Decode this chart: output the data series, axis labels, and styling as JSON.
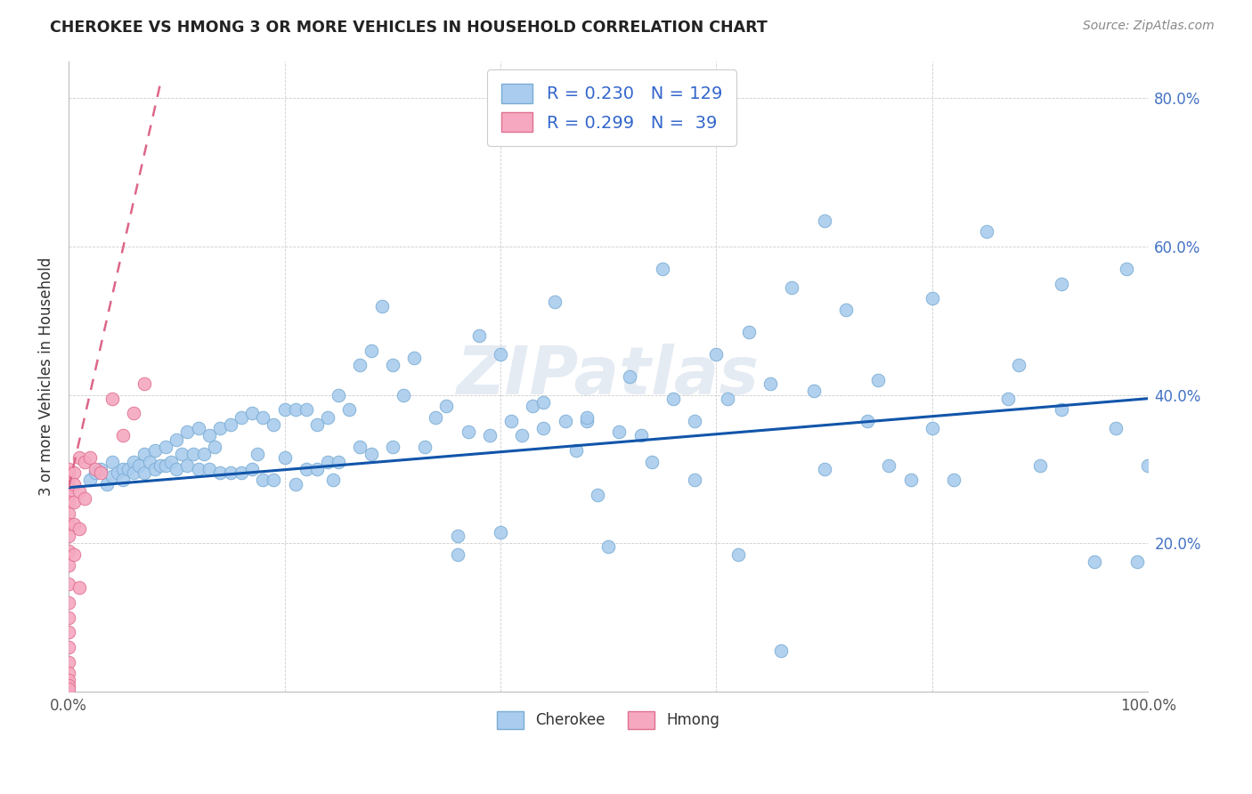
{
  "title": "CHEROKEE VS HMONG 3 OR MORE VEHICLES IN HOUSEHOLD CORRELATION CHART",
  "source": "Source: ZipAtlas.com",
  "ylabel": "3 or more Vehicles in Household",
  "xlim": [
    0.0,
    1.0
  ],
  "ylim": [
    0.0,
    0.85
  ],
  "yticks": [
    0.0,
    0.2,
    0.4,
    0.6,
    0.8
  ],
  "yticklabels_right": [
    "",
    "20.0%",
    "40.0%",
    "60.0%",
    "80.0%"
  ],
  "xtick_left_label": "0.0%",
  "xtick_right_label": "100.0%",
  "cherokee_color": "#aaccee",
  "cherokee_edge_color": "#7aadd4",
  "hmong_color": "#f5a8c0",
  "hmong_edge_color": "#e07090",
  "trend_cherokee_color": "#1155aa",
  "trend_hmong_color": "#dd6688",
  "legend_R_cherokee": "0.230",
  "legend_N_cherokee": "129",
  "legend_R_hmong": "0.299",
  "legend_N_hmong": "39",
  "watermark": "ZIPatlas",
  "cherokee_trend_x0": 0.0,
  "cherokee_trend_y0": 0.275,
  "cherokee_trend_x1": 1.0,
  "cherokee_trend_y1": 0.395,
  "hmong_trend_x0": 0.0,
  "hmong_trend_y0": 0.275,
  "hmong_trend_x1": 0.085,
  "hmong_trend_y1": 0.82,
  "cherokee_x": [
    0.02,
    0.025,
    0.03,
    0.035,
    0.04,
    0.04,
    0.045,
    0.05,
    0.05,
    0.055,
    0.06,
    0.06,
    0.065,
    0.07,
    0.07,
    0.075,
    0.08,
    0.08,
    0.085,
    0.09,
    0.09,
    0.095,
    0.1,
    0.1,
    0.105,
    0.11,
    0.11,
    0.115,
    0.12,
    0.12,
    0.125,
    0.13,
    0.13,
    0.135,
    0.14,
    0.14,
    0.15,
    0.15,
    0.16,
    0.16,
    0.17,
    0.17,
    0.175,
    0.18,
    0.18,
    0.19,
    0.19,
    0.2,
    0.2,
    0.21,
    0.21,
    0.22,
    0.22,
    0.23,
    0.23,
    0.24,
    0.24,
    0.245,
    0.25,
    0.25,
    0.26,
    0.27,
    0.27,
    0.28,
    0.28,
    0.29,
    0.3,
    0.3,
    0.31,
    0.32,
    0.33,
    0.34,
    0.35,
    0.36,
    0.36,
    0.37,
    0.38,
    0.39,
    0.4,
    0.4,
    0.41,
    0.42,
    0.43,
    0.44,
    0.45,
    0.46,
    0.47,
    0.48,
    0.49,
    0.5,
    0.51,
    0.52,
    0.53,
    0.55,
    0.56,
    0.58,
    0.6,
    0.61,
    0.63,
    0.65,
    0.67,
    0.69,
    0.7,
    0.72,
    0.74,
    0.76,
    0.78,
    0.8,
    0.82,
    0.85,
    0.87,
    0.9,
    0.92,
    0.95,
    0.97,
    0.99,
    1.0,
    0.58,
    0.62,
    0.66,
    0.7,
    0.75,
    0.8,
    0.88,
    0.92,
    0.98,
    0.54,
    0.48,
    0.44
  ],
  "cherokee_y": [
    0.285,
    0.295,
    0.3,
    0.28,
    0.29,
    0.31,
    0.295,
    0.3,
    0.285,
    0.3,
    0.31,
    0.295,
    0.305,
    0.32,
    0.295,
    0.31,
    0.325,
    0.3,
    0.305,
    0.33,
    0.305,
    0.31,
    0.34,
    0.3,
    0.32,
    0.35,
    0.305,
    0.32,
    0.355,
    0.3,
    0.32,
    0.345,
    0.3,
    0.33,
    0.355,
    0.295,
    0.36,
    0.295,
    0.37,
    0.295,
    0.375,
    0.3,
    0.32,
    0.37,
    0.285,
    0.36,
    0.285,
    0.38,
    0.315,
    0.38,
    0.28,
    0.38,
    0.3,
    0.36,
    0.3,
    0.37,
    0.31,
    0.285,
    0.4,
    0.31,
    0.38,
    0.44,
    0.33,
    0.46,
    0.32,
    0.52,
    0.44,
    0.33,
    0.4,
    0.45,
    0.33,
    0.37,
    0.385,
    0.21,
    0.185,
    0.35,
    0.48,
    0.345,
    0.455,
    0.215,
    0.365,
    0.345,
    0.385,
    0.355,
    0.525,
    0.365,
    0.325,
    0.365,
    0.265,
    0.195,
    0.35,
    0.425,
    0.345,
    0.57,
    0.395,
    0.365,
    0.455,
    0.395,
    0.485,
    0.415,
    0.545,
    0.405,
    0.635,
    0.515,
    0.365,
    0.305,
    0.285,
    0.355,
    0.285,
    0.62,
    0.395,
    0.305,
    0.38,
    0.175,
    0.355,
    0.175,
    0.305,
    0.285,
    0.185,
    0.055,
    0.3,
    0.42,
    0.53,
    0.44,
    0.55,
    0.57,
    0.31,
    0.37,
    0.39
  ],
  "hmong_x": [
    0.0,
    0.0,
    0.0,
    0.0,
    0.0,
    0.0,
    0.0,
    0.0,
    0.0,
    0.0,
    0.0,
    0.0,
    0.0,
    0.0,
    0.0,
    0.0,
    0.0,
    0.0,
    0.0,
    0.0,
    0.0,
    0.005,
    0.005,
    0.005,
    0.005,
    0.005,
    0.01,
    0.01,
    0.01,
    0.01,
    0.015,
    0.015,
    0.02,
    0.025,
    0.03,
    0.04,
    0.05,
    0.06,
    0.07
  ],
  "hmong_y": [
    0.295,
    0.285,
    0.275,
    0.265,
    0.255,
    0.24,
    0.225,
    0.21,
    0.19,
    0.17,
    0.145,
    0.12,
    0.1,
    0.08,
    0.06,
    0.04,
    0.025,
    0.015,
    0.008,
    0.003,
    0.3,
    0.295,
    0.28,
    0.255,
    0.225,
    0.185,
    0.315,
    0.27,
    0.22,
    0.14,
    0.31,
    0.26,
    0.315,
    0.3,
    0.295,
    0.395,
    0.345,
    0.375,
    0.415
  ]
}
